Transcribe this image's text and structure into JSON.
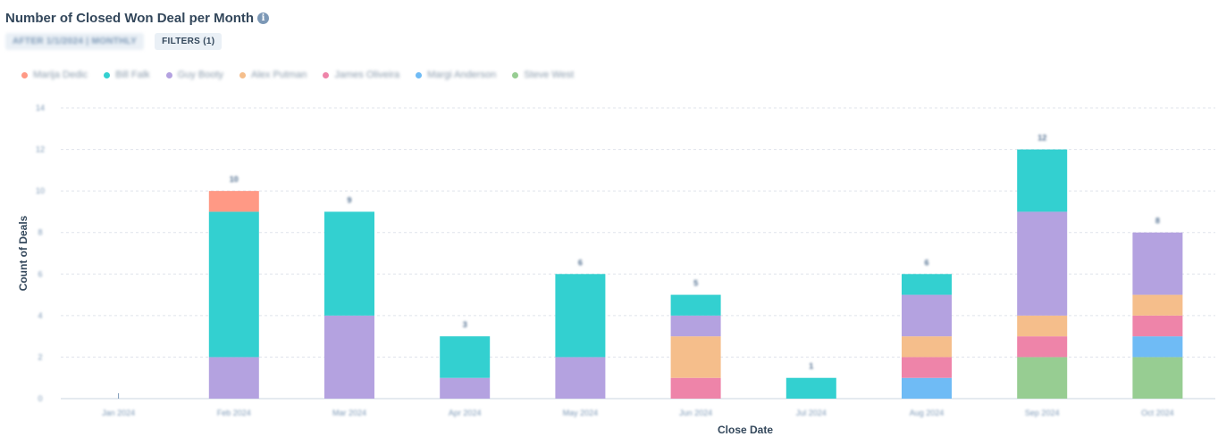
{
  "header": {
    "title": "Number of Closed Won Deal per Month",
    "info_icon": "info-icon",
    "date_tag": "AFTER 1/1/2024 | MONTHLY",
    "filters_label": "FILTERS (1)"
  },
  "legend": [
    {
      "name": "Marija Dedic",
      "color": "#ff9985"
    },
    {
      "name": "Bill Falk",
      "color": "#33d0d0"
    },
    {
      "name": "Guy Booty",
      "color": "#b4a2e0"
    },
    {
      "name": "Alex Putman",
      "color": "#f5be8b"
    },
    {
      "name": "James Oliveira",
      "color": "#ee84a9"
    },
    {
      "name": "Margi Anderson",
      "color": "#6fbbf5"
    },
    {
      "name": "Steve West",
      "color": "#97cd92"
    }
  ],
  "chart_data": {
    "type": "bar",
    "stacked": true,
    "title": "Number of Closed Won Deal per Month",
    "xlabel": "Close Date",
    "ylabel": "Count of Deals",
    "ylim": [
      0,
      14
    ],
    "yticks": [
      0,
      2,
      4,
      6,
      8,
      10,
      12,
      14
    ],
    "grid": true,
    "legend_position": "top-left",
    "categories": [
      "Jan 2024",
      "Feb 2024",
      "Mar 2024",
      "Apr 2024",
      "May 2024",
      "Jun 2024",
      "Jul 2024",
      "Aug 2024",
      "Sep 2024",
      "Oct 2024"
    ],
    "totals": [
      0,
      10,
      9,
      3,
      6,
      5,
      1,
      6,
      12,
      8
    ],
    "series": [
      {
        "name": "Steve West",
        "color": "#97cd92",
        "values": [
          0,
          0,
          0,
          0,
          0,
          0,
          0,
          0,
          2,
          2
        ]
      },
      {
        "name": "Margi Anderson",
        "color": "#6fbbf5",
        "values": [
          0,
          0,
          0,
          0,
          0,
          0,
          0,
          1,
          0,
          1
        ]
      },
      {
        "name": "James Oliveira",
        "color": "#ee84a9",
        "values": [
          0,
          0,
          0,
          0,
          0,
          1,
          0,
          1,
          1,
          1
        ]
      },
      {
        "name": "Alex Putman",
        "color": "#f5be8b",
        "values": [
          0,
          0,
          0,
          0,
          0,
          2,
          0,
          1,
          1,
          1
        ]
      },
      {
        "name": "Guy Booty",
        "color": "#b4a2e0",
        "values": [
          0,
          2,
          4,
          1,
          2,
          1,
          0,
          2,
          5,
          3
        ]
      },
      {
        "name": "Bill Falk",
        "color": "#33d0d0",
        "values": [
          0,
          7,
          5,
          2,
          4,
          1,
          1,
          1,
          3,
          0
        ]
      },
      {
        "name": "Marija Dedic",
        "color": "#ff9985",
        "values": [
          0,
          1,
          0,
          0,
          0,
          0,
          0,
          0,
          0,
          0
        ]
      }
    ]
  }
}
